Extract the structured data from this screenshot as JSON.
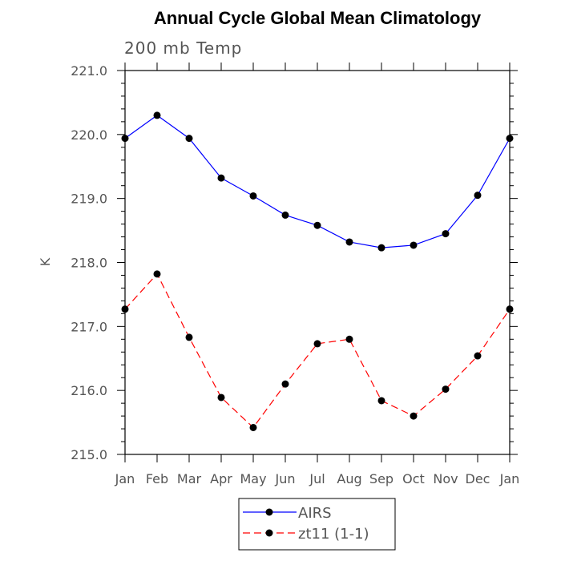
{
  "chart_data": {
    "type": "line",
    "title": "Annual Cycle Global Mean Climatology",
    "subtitle": "200 mb Temp",
    "ylabel": "K",
    "xlabel": "",
    "categories": [
      "Jan",
      "Feb",
      "Mar",
      "Apr",
      "May",
      "Jun",
      "Jul",
      "Aug",
      "Sep",
      "Oct",
      "Nov",
      "Dec",
      "Jan"
    ],
    "ylim": [
      215.0,
      221.0
    ],
    "yticks": [
      "215.0",
      "216.0",
      "217.0",
      "218.0",
      "219.0",
      "220.0",
      "221.0"
    ],
    "grid": false,
    "legend_position": "bottom-center",
    "series": [
      {
        "name": "AIRS",
        "color": "#0000ff",
        "dash": "solid",
        "values": [
          219.94,
          220.3,
          219.94,
          219.32,
          219.04,
          218.74,
          218.58,
          218.32,
          218.23,
          218.27,
          218.45,
          219.05,
          219.94
        ]
      },
      {
        "name": "zt11 (1-1)",
        "color": "#ff0000",
        "dash": "dashed",
        "values": [
          217.27,
          217.82,
          216.83,
          215.89,
          215.42,
          216.1,
          216.73,
          216.8,
          215.84,
          215.6,
          216.02,
          216.54,
          217.27
        ]
      }
    ]
  }
}
